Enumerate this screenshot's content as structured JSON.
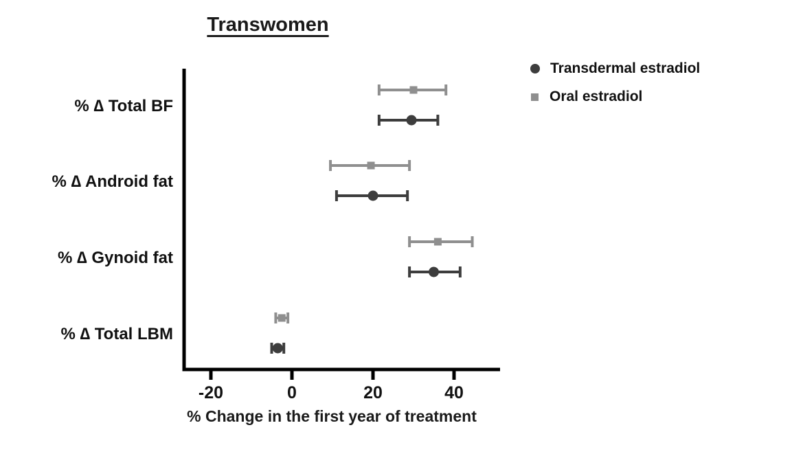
{
  "title": "Transwomen",
  "xlabel": "% Change in the first year of treatment",
  "legend": [
    {
      "label": "Transdermal estradiol",
      "marker": "circle",
      "color": "#3d3d3d"
    },
    {
      "label": "Oral estradiol",
      "marker": "square",
      "color": "#8f8f8f"
    }
  ],
  "colors": {
    "axis": "#000000",
    "text": "#111111"
  },
  "chart_data": {
    "type": "scatter",
    "subtype": "horizontal-point-estimates-with-error-bars",
    "title": "Transwomen",
    "xlabel": "% Change in the first year of treatment",
    "ylabel": "",
    "categories": [
      "% ∆ Total BF",
      "% ∆ Android fat",
      "% ∆ Gynoid fat",
      "% ∆ Total LBM"
    ],
    "x_ticks": [
      -20,
      0,
      20,
      40
    ],
    "xlim": [
      -27,
      51
    ],
    "grid": false,
    "legend_position": "top-right",
    "series": [
      {
        "name": "Oral estradiol",
        "marker": "square",
        "color": "#8f8f8f",
        "values": [
          30,
          19.5,
          36,
          -2.5
        ],
        "ci_low": [
          21.5,
          9.5,
          29,
          -4
        ],
        "ci_high": [
          38,
          29,
          44.5,
          -1
        ]
      },
      {
        "name": "Transdermal estradiol",
        "marker": "circle",
        "color": "#3d3d3d",
        "values": [
          29.5,
          20,
          35,
          -3.5
        ],
        "ci_low": [
          21.5,
          11,
          29,
          -5
        ],
        "ci_high": [
          36,
          28.5,
          41.5,
          -2
        ]
      }
    ]
  }
}
